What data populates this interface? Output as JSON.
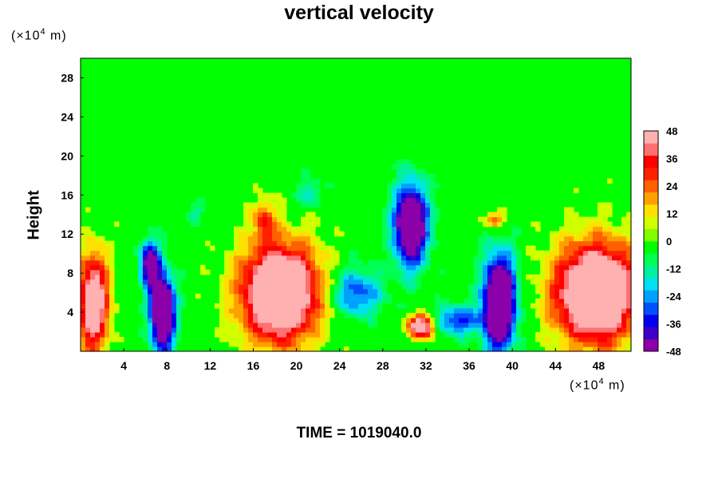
{
  "chart_data": {
    "type": "heatmap",
    "title": "vertical velocity",
    "ylabel": "Height",
    "y_unit_prefix": "(×10",
    "y_unit_exp": "4",
    "y_unit_suffix": " m)",
    "x_unit_prefix": "(×10",
    "x_unit_exp": "4",
    "x_unit_suffix": " m)",
    "footer": "TIME = 1019040.0",
    "xlim": [
      0,
      51
    ],
    "ylim": [
      0,
      30
    ],
    "x_ticks": [
      "4",
      "8",
      "12",
      "16",
      "20",
      "24",
      "28",
      "32",
      "36",
      "40",
      "44",
      "48"
    ],
    "y_ticks": [
      "4",
      "8",
      "12",
      "16",
      "20",
      "24",
      "28"
    ],
    "colorbar": {
      "range": [
        -48,
        48
      ],
      "ticks": [
        "48",
        "36",
        "24",
        "12",
        "0",
        "-12",
        "-24",
        "-36",
        "-48"
      ],
      "colors": [
        "#8b00a8",
        "#3c00c8",
        "#0000f0",
        "#0050ff",
        "#00a0ff",
        "#00e0f0",
        "#00f0a0",
        "#00ff50",
        "#00ff00",
        "#80ff00",
        "#d0ff00",
        "#ffe000",
        "#ffa000",
        "#ff6000",
        "#ff2000",
        "#ff0000",
        "#ff7070",
        "#ffb0b0"
      ]
    },
    "background_value": 0,
    "features": [
      {
        "kind": "updraft",
        "x": 1.2,
        "y": 5,
        "rx": 1.4,
        "ry": 5.0,
        "w": 60
      },
      {
        "kind": "updraft",
        "x": 18.5,
        "y": 6,
        "rx": 3.6,
        "ry": 5.0,
        "w": 75
      },
      {
        "kind": "updraft",
        "x": 17.0,
        "y": 13.5,
        "rx": 1.0,
        "ry": 2.0,
        "w": 26
      },
      {
        "kind": "updraft",
        "x": 31.6,
        "y": 2.6,
        "rx": 1.2,
        "ry": 1.2,
        "w": 62
      },
      {
        "kind": "updraft",
        "x": 47.8,
        "y": 6,
        "rx": 3.8,
        "ry": 5.0,
        "w": 78
      },
      {
        "kind": "updraft",
        "x": 38.3,
        "y": 13.5,
        "rx": 1.0,
        "ry": 0.9,
        "w": 28
      },
      {
        "kind": "downdraft",
        "x": 7.6,
        "y": 4,
        "rx": 1.1,
        "ry": 3.8,
        "w": -80
      },
      {
        "kind": "downdraft",
        "x": 6.4,
        "y": 9,
        "rx": 0.9,
        "ry": 2.3,
        "w": -55
      },
      {
        "kind": "downdraft",
        "x": 30.6,
        "y": 13,
        "rx": 1.6,
        "ry": 4.2,
        "w": -68
      },
      {
        "kind": "downdraft",
        "x": 38.8,
        "y": 5,
        "rx": 1.5,
        "ry": 4.8,
        "w": -80
      },
      {
        "kind": "downdraft",
        "x": 25.5,
        "y": 6,
        "rx": 2.4,
        "ry": 2.5,
        "w": -32
      },
      {
        "kind": "downdraft",
        "x": 34.8,
        "y": 3.2,
        "rx": 2.2,
        "ry": 1.5,
        "w": -34
      },
      {
        "kind": "downdraft",
        "x": 21.3,
        "y": 16.2,
        "rx": 1.2,
        "ry": 1.4,
        "w": -18
      },
      {
        "kind": "downdraft",
        "x": 10.6,
        "y": 14.2,
        "rx": 0.8,
        "ry": 1.0,
        "w": -14
      }
    ]
  }
}
